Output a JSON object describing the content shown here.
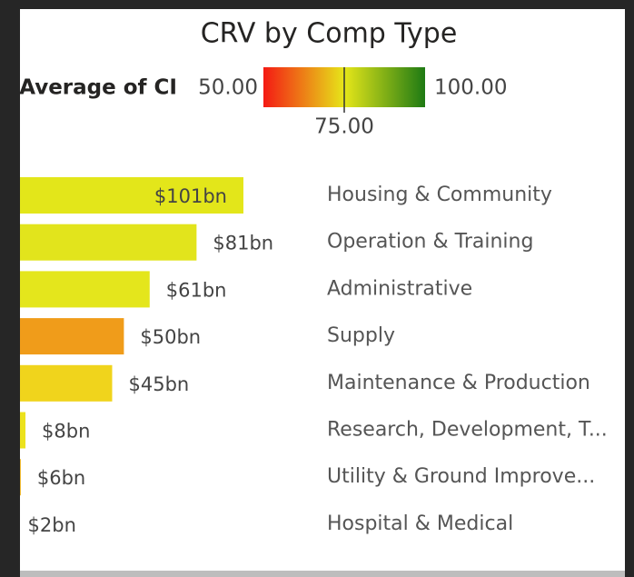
{
  "chart_data": {
    "type": "bar",
    "orientation": "horizontal",
    "title": "CRV by Comp Type",
    "legend": {
      "title": "Average of CI",
      "min": {
        "value": 50,
        "label": "50.00"
      },
      "mid": {
        "value": 75,
        "label": "75.00"
      },
      "max": {
        "value": 100,
        "label": "100.00"
      },
      "colors": [
        "#f41a14",
        "#e6e619",
        "#1e7a14"
      ]
    },
    "categories": [
      "Housing & Community",
      "Operation & Training",
      "Administrative",
      "Supply",
      "Maintenance & Production",
      "Research, Development, T...",
      "Utility & Ground Improve...",
      "Hospital & Medical"
    ],
    "values": [
      101,
      81,
      61,
      50,
      45,
      8,
      6,
      2
    ],
    "value_labels": [
      "$101bn",
      "$81bn",
      "$61bn",
      "$50bn",
      "$45bn",
      "$8bn",
      "$6bn",
      "$2bn"
    ],
    "colors": [
      "#e3e61a",
      "#e2e41c",
      "#e4e61c",
      "#f09c1a",
      "#f0d41c",
      "#ece21c",
      "#f0b41a",
      "#eedc1c"
    ]
  }
}
